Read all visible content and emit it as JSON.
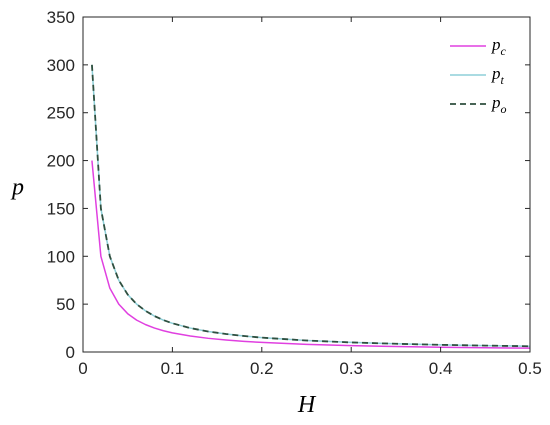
{
  "chart_data": {
    "type": "line",
    "title": "",
    "xlabel": "H",
    "ylabel": "p",
    "xlim": [
      0,
      0.5
    ],
    "ylim": [
      0,
      350
    ],
    "xticks": [
      0,
      0.1,
      0.2,
      0.3,
      0.4,
      0.5
    ],
    "yticks": [
      0,
      50,
      100,
      150,
      200,
      250,
      300,
      350
    ],
    "xtick_labels": [
      "0",
      "0.1",
      "0.2",
      "0.3",
      "0.4",
      "0.5"
    ],
    "ytick_labels": [
      "0",
      "50",
      "100",
      "150",
      "200",
      "250",
      "300",
      "350"
    ],
    "grid": false,
    "legend_position": "top-right",
    "x": [
      0.01,
      0.02,
      0.03,
      0.04,
      0.05,
      0.06,
      0.07,
      0.08,
      0.09,
      0.1,
      0.12,
      0.14,
      0.16,
      0.18,
      0.2,
      0.25,
      0.3,
      0.35,
      0.4,
      0.45,
      0.5
    ],
    "series": [
      {
        "name": "p",
        "subscript": "c",
        "color": "#e040e0",
        "dash": "solid",
        "values": [
          200,
          100,
          66.7,
          50,
          40,
          33.3,
          28.6,
          25,
          22.2,
          20,
          16.7,
          14.3,
          12.5,
          11.1,
          10,
          8,
          6.7,
          5.7,
          5,
          4.4,
          4
        ]
      },
      {
        "name": "p",
        "subscript": "t",
        "color": "#8ecfd8",
        "dash": "solid",
        "values": [
          300,
          150,
          100,
          75,
          60,
          50,
          42.9,
          37.5,
          33.3,
          30,
          25,
          21.4,
          18.8,
          16.7,
          15,
          12,
          10,
          8.6,
          7.5,
          6.7,
          6
        ]
      },
      {
        "name": "p",
        "subscript": "o",
        "color": "#2f4f3f",
        "dash": "dashed",
        "values": [
          300,
          150,
          100,
          75,
          60,
          50,
          42.9,
          37.5,
          33.3,
          30,
          25,
          21.4,
          18.8,
          16.7,
          15,
          12,
          10,
          8.6,
          7.5,
          6.7,
          6
        ]
      }
    ]
  }
}
